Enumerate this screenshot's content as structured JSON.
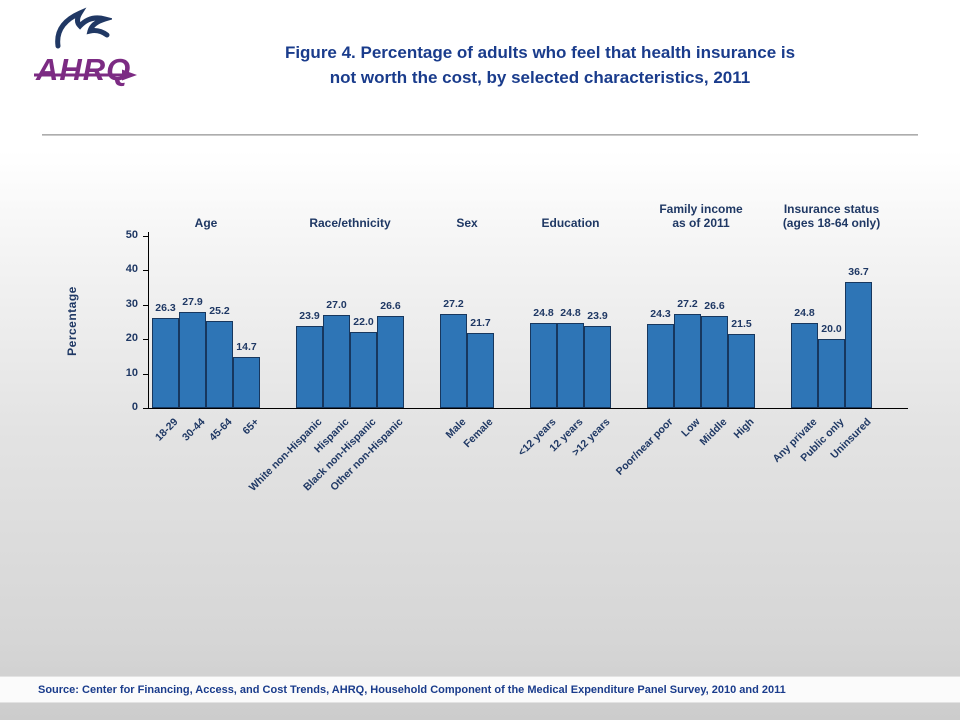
{
  "header": {
    "logo_text": "AHRQ",
    "title_lines": [
      "Figure 4. Percentage of adults who feel that health insurance is",
      "not worth the cost, by selected characteristics, 2011"
    ]
  },
  "footer": {
    "source": "Source: Center for Financing, Access, and Cost Trends, AHRQ, Household Component of the Medical Expenditure Panel Survey, 2010 and 2011"
  },
  "colors": {
    "bar_fill": "#2E75B6",
    "bar_border": "#17375E",
    "chart_text": "#1F3864",
    "title_text": "#1A3C8C",
    "logo_purple": "#7C2B83",
    "logo_navy": "#203864"
  },
  "chart_data": {
    "type": "bar",
    "title": "Figure 4. Percentage of adults who feel that health insurance is not worth the cost, by selected characteristics, 2011",
    "ylabel": "Percentage",
    "xlabel": "",
    "ylim": [
      0,
      50
    ],
    "yticks": [
      0,
      10,
      20,
      30,
      40,
      50
    ],
    "grid": false,
    "legend": "none",
    "bar_color": "#2E75B6",
    "groups": [
      {
        "label": "Age",
        "categories": [
          "18-29",
          "30-44",
          "45-64",
          "65+"
        ],
        "values": [
          26.3,
          27.9,
          25.2,
          14.7
        ],
        "value_labels": [
          "26.3",
          "27.9",
          "25.2",
          "14.7"
        ]
      },
      {
        "label": "Race/ethnicity",
        "categories": [
          "White non-Hispanic",
          "Hispanic",
          "Black non-Hispanic",
          "Other non-Hispanic"
        ],
        "values": [
          23.9,
          27.0,
          22.0,
          26.6
        ],
        "value_labels": [
          "23.9",
          "27.0",
          "22.0",
          "26.6"
        ]
      },
      {
        "label": "Sex",
        "categories": [
          "Male",
          "Female"
        ],
        "values": [
          27.2,
          21.7
        ],
        "value_labels": [
          "27.2",
          "21.7"
        ]
      },
      {
        "label": "Education",
        "categories": [
          "<12 years",
          "12 years",
          ">12 years"
        ],
        "values": [
          24.8,
          24.8,
          23.9
        ],
        "value_labels": [
          "24.8",
          "24.8",
          "23.9"
        ]
      },
      {
        "label": "Family income\nas of 2011",
        "categories": [
          "Poor/near poor",
          "Low",
          "Middle",
          "High"
        ],
        "values": [
          24.3,
          27.2,
          26.6,
          21.5
        ],
        "value_labels": [
          "24.3",
          "27.2",
          "26.6",
          "21.5"
        ]
      },
      {
        "label": "Insurance status\n(ages 18-64 only)",
        "categories": [
          "Any private",
          "Public only",
          "Uninsured"
        ],
        "values": [
          24.8,
          20.0,
          36.7
        ],
        "value_labels": [
          "24.8",
          "20.0",
          "36.7"
        ]
      }
    ]
  }
}
